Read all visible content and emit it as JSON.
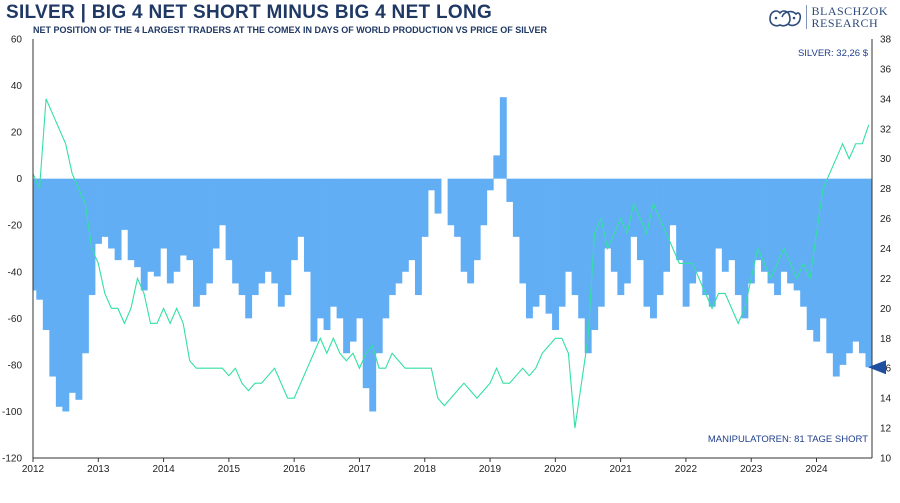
{
  "header": {
    "title": "SILVER | BIG 4 NET SHORT MINUS BIG 4 NET LONG",
    "subtitle": "NET POSITION OF THE 4 LARGEST TRADERS AT THE COMEX IN DAYS OF WORLD PRODUCTION VS PRICE OF SILVER",
    "logo_line1": "BLASCHZOK",
    "logo_line2": "RESEARCH"
  },
  "colors": {
    "net_position": "#62aef5",
    "silver_price": "#34e0a1",
    "marker": "#1f4fa0",
    "annotation": "#1f3f8c"
  },
  "chart_data": {
    "type": "area",
    "title": "SILVER | BIG 4 NET SHORT MINUS BIG 4 NET LONG",
    "subtitle": "NET POSITION OF THE 4 LARGEST TRADERS AT THE COMEX IN DAYS OF WORLD PRODUCTION VS PRICE OF SILVER",
    "x_ticks": [
      "2012",
      "2013",
      "2014",
      "2015",
      "2016",
      "2017",
      "2018",
      "2019",
      "2020",
      "2021",
      "2022",
      "2023",
      "2024"
    ],
    "xlim": [
      2012.0,
      2024.85
    ],
    "y_left": {
      "range": [
        -120,
        60
      ],
      "ticks": [
        -120,
        -100,
        -80,
        -60,
        -40,
        -20,
        0,
        20,
        40,
        60
      ]
    },
    "y_right": {
      "range": [
        10,
        38
      ],
      "ticks": [
        10,
        12,
        14,
        16,
        18,
        20,
        22,
        24,
        26,
        28,
        30,
        32,
        34,
        36,
        38
      ]
    },
    "grid": "none",
    "series": [
      {
        "name": "",
        "axis": "left",
        "kind": "bar",
        "x": [
          2012.0,
          2012.1,
          2012.2,
          2012.3,
          2012.4,
          2012.5,
          2012.6,
          2012.7,
          2012.8,
          2012.9,
          2013.0,
          2013.1,
          2013.2,
          2013.3,
          2013.4,
          2013.5,
          2013.6,
          2013.7,
          2013.8,
          2013.9,
          2014.0,
          2014.1,
          2014.2,
          2014.3,
          2014.4,
          2014.5,
          2014.6,
          2014.7,
          2014.8,
          2014.9,
          2015.0,
          2015.1,
          2015.2,
          2015.3,
          2015.4,
          2015.5,
          2015.6,
          2015.7,
          2015.8,
          2015.9,
          2016.0,
          2016.1,
          2016.2,
          2016.3,
          2016.4,
          2016.5,
          2016.6,
          2016.7,
          2016.8,
          2016.9,
          2017.0,
          2017.1,
          2017.2,
          2017.3,
          2017.4,
          2017.5,
          2017.6,
          2017.7,
          2017.8,
          2017.9,
          2018.0,
          2018.1,
          2018.2,
          2018.3,
          2018.4,
          2018.5,
          2018.6,
          2018.7,
          2018.8,
          2018.9,
          2019.0,
          2019.1,
          2019.2,
          2019.3,
          2019.4,
          2019.5,
          2019.6,
          2019.7,
          2019.8,
          2019.9,
          2020.0,
          2020.1,
          2020.2,
          2020.3,
          2020.4,
          2020.5,
          2020.6,
          2020.7,
          2020.8,
          2020.9,
          2021.0,
          2021.1,
          2021.2,
          2021.3,
          2021.4,
          2021.5,
          2021.6,
          2021.7,
          2021.8,
          2021.9,
          2022.0,
          2022.1,
          2022.2,
          2022.3,
          2022.4,
          2022.5,
          2022.6,
          2022.7,
          2022.8,
          2022.9,
          2023.0,
          2023.1,
          2023.2,
          2023.3,
          2023.4,
          2023.5,
          2023.6,
          2023.7,
          2023.8,
          2023.9,
          2024.0,
          2024.1,
          2024.2,
          2024.3,
          2024.4,
          2024.5,
          2024.6,
          2024.7,
          2024.8
        ],
        "values": [
          -48,
          -52,
          -65,
          -85,
          -98,
          -100,
          -92,
          -95,
          -75,
          -50,
          -28,
          -25,
          -30,
          -35,
          -22,
          -35,
          -38,
          -48,
          -40,
          -42,
          -30,
          -45,
          -40,
          -33,
          -35,
          -55,
          -50,
          -45,
          -30,
          -20,
          -35,
          -45,
          -50,
          -60,
          -50,
          -45,
          -40,
          -45,
          -55,
          -50,
          -35,
          -25,
          -40,
          -70,
          -60,
          -65,
          -55,
          -60,
          -75,
          -70,
          -60,
          -90,
          -100,
          -75,
          -60,
          -50,
          -45,
          -40,
          -35,
          -50,
          -25,
          -5,
          -15,
          0,
          -20,
          -25,
          -40,
          -45,
          -35,
          -20,
          -5,
          10,
          35,
          -10,
          -25,
          -45,
          -60,
          -55,
          -50,
          -58,
          -65,
          -55,
          -40,
          -50,
          -60,
          -75,
          -65,
          -55,
          -30,
          -40,
          -50,
          -45,
          -25,
          -35,
          -55,
          -60,
          -50,
          -40,
          -20,
          -35,
          -55,
          -45,
          -40,
          -50,
          -55,
          -30,
          -40,
          -35,
          -50,
          -60,
          -45,
          -35,
          -40,
          -45,
          -50,
          -40,
          -45,
          -48,
          -55,
          -65,
          -70,
          -60,
          -75,
          -85,
          -80,
          -75,
          -70,
          -75,
          -81
        ]
      },
      {
        "name": "",
        "axis": "right",
        "kind": "line",
        "x": [
          2012.0,
          2012.1,
          2012.2,
          2012.3,
          2012.4,
          2012.5,
          2012.6,
          2012.7,
          2012.8,
          2012.9,
          2013.0,
          2013.1,
          2013.2,
          2013.3,
          2013.4,
          2013.5,
          2013.6,
          2013.7,
          2013.8,
          2013.9,
          2014.0,
          2014.1,
          2014.2,
          2014.3,
          2014.4,
          2014.5,
          2014.6,
          2014.7,
          2014.8,
          2014.9,
          2015.0,
          2015.1,
          2015.2,
          2015.3,
          2015.4,
          2015.5,
          2015.6,
          2015.7,
          2015.8,
          2015.9,
          2016.0,
          2016.1,
          2016.2,
          2016.3,
          2016.4,
          2016.5,
          2016.6,
          2016.7,
          2016.8,
          2016.9,
          2017.0,
          2017.1,
          2017.2,
          2017.3,
          2017.4,
          2017.5,
          2017.6,
          2017.7,
          2017.8,
          2017.9,
          2018.0,
          2018.1,
          2018.2,
          2018.3,
          2018.4,
          2018.5,
          2018.6,
          2018.7,
          2018.8,
          2018.9,
          2019.0,
          2019.1,
          2019.2,
          2019.3,
          2019.4,
          2019.5,
          2019.6,
          2019.7,
          2019.8,
          2019.9,
          2020.0,
          2020.1,
          2020.2,
          2020.3,
          2020.4,
          2020.5,
          2020.6,
          2020.7,
          2020.8,
          2020.9,
          2021.0,
          2021.1,
          2021.2,
          2021.3,
          2021.4,
          2021.5,
          2021.6,
          2021.7,
          2021.8,
          2021.9,
          2022.0,
          2022.1,
          2022.2,
          2022.3,
          2022.4,
          2022.5,
          2022.6,
          2022.7,
          2022.8,
          2022.9,
          2023.0,
          2023.1,
          2023.2,
          2023.3,
          2023.4,
          2023.5,
          2023.6,
          2023.7,
          2023.8,
          2023.9,
          2024.0,
          2024.1,
          2024.2,
          2024.3,
          2024.4,
          2024.5,
          2024.6,
          2024.7,
          2024.8
        ],
        "values": [
          29,
          28,
          34,
          33,
          32,
          31,
          29,
          28,
          27,
          24,
          23,
          21,
          20,
          20,
          19,
          20,
          22,
          21,
          19,
          19,
          20,
          19,
          20,
          19,
          16.5,
          16,
          16,
          16,
          16,
          16,
          15.5,
          16,
          15,
          14.5,
          15,
          15,
          15.5,
          16,
          15,
          14,
          14,
          15,
          16,
          17,
          18,
          17,
          18,
          17,
          16.5,
          17,
          16,
          17,
          17.5,
          16,
          16,
          17,
          16.5,
          16,
          16,
          16,
          16,
          16,
          14,
          13.5,
          14,
          14.5,
          15,
          14.5,
          14,
          14.5,
          15,
          16,
          15,
          15,
          15.5,
          16,
          15.5,
          16,
          17,
          17.5,
          18,
          18,
          17,
          12,
          15,
          18,
          25,
          26,
          24,
          25,
          26,
          25,
          27,
          26,
          25,
          27,
          26,
          25,
          24,
          23,
          23,
          23,
          22,
          21,
          20,
          21,
          21,
          20,
          19,
          20,
          22,
          24,
          23,
          22,
          23,
          24,
          23,
          22,
          23,
          22,
          25,
          28,
          29,
          30,
          31,
          30,
          31,
          31,
          32.26
        ]
      }
    ],
    "annotations": {
      "silver_price": "SILVER: 32,26 $",
      "manipulators": "MANIPULATOREN: 81 TAGE SHORT"
    },
    "marker_value": -81
  }
}
